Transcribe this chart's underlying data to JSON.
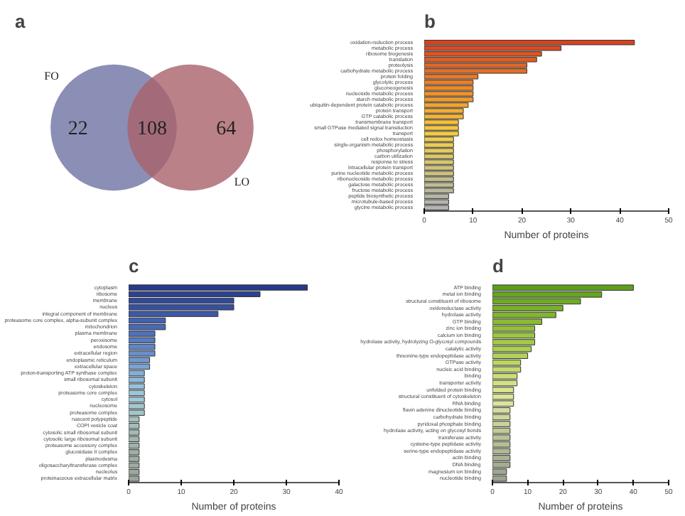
{
  "chart_data": [
    {
      "type": "other",
      "title": "a",
      "annotations": [
        "FO",
        "LO",
        "22",
        "108",
        "64"
      ]
    },
    {
      "type": "bar",
      "title": "b",
      "orientation": "horizontal",
      "xlabel": "Number of proteins",
      "xlim": [
        0,
        50
      ],
      "xticks": [
        0,
        10,
        20,
        30,
        40,
        50
      ],
      "grid": false,
      "categories": [
        "oxidation-reduction process",
        "metabolic process",
        "ribosome biogenesis",
        "translation",
        "proteolysis",
        "carbohydrate metabolic process",
        "protein folding",
        "glycolytic process",
        "gluconeogenesis",
        "nucleoside metabolic process",
        "starch metabolic process",
        "ubiquitin-dependent protein catabolic process",
        "protein transport",
        "GTP catabolic process",
        "transmembrane transport",
        "small GTPase mediated signal transduction",
        "transport",
        "cell redox homeostasis",
        "single-organism metabolic process",
        "phosphorylation",
        "carbon utilization",
        "response to stress",
        "intracellular protein transport",
        "purine nucleotide metabolic process",
        "ribonucleoside metabolic process",
        "galactose metabolic process",
        "fructose metabolic process",
        "peptide biosynthetic process",
        "microtubule-based process",
        "glycine metabolic process"
      ],
      "values": [
        43,
        28,
        24,
        23,
        21,
        21,
        11,
        10,
        10,
        10,
        10,
        9,
        8,
        8,
        7,
        7,
        7,
        6,
        6,
        6,
        6,
        6,
        6,
        6,
        6,
        6,
        6,
        5,
        5,
        5
      ],
      "colors": [
        "#d8431f",
        "#dc4b20",
        "#df5421",
        "#e25c22",
        "#e46523",
        "#e76e24",
        "#ea7725",
        "#ec8026",
        "#ef8927",
        "#f09229",
        "#f29b2b",
        "#f3a42e",
        "#f4ad31",
        "#f5b634",
        "#f5be38",
        "#f5c63d",
        "#f3cb44",
        "#efcd4c",
        "#eacd55",
        "#e4cc5e",
        "#ddc967",
        "#d6c670",
        "#d0c379",
        "#cac081",
        "#c4bd8a",
        "#bfbb93",
        "#bab99c",
        "#b7b7a5",
        "#b5b5ad",
        "#b4b4b4"
      ]
    },
    {
      "type": "bar",
      "title": "c",
      "orientation": "horizontal",
      "xlabel": "Number of proteins",
      "xlim": [
        0,
        40
      ],
      "xticks": [
        0,
        10,
        20,
        30,
        40
      ],
      "grid": false,
      "categories": [
        "cytoplasm",
        "ribosome",
        "membrane",
        "nucleus",
        "integral component of membrane",
        "proteasome core complex, alpha-subunit complex",
        "mitochondrion",
        "plasma membrane",
        "peroxisome",
        "endosome",
        "extracellular region",
        "endoplasmic reticulum",
        "extracellular space",
        "proton-transporting ATP synthase complex",
        "small ribosomal subunit",
        "cytoskeleton",
        "proteasome core complex",
        "cytosol",
        "nucleosome",
        "proteasome complex",
        "nascent polypeptide",
        "COPI vesicle coat",
        "cytosolic small ribosomal subunit",
        "cytosolic large ribosomal subunit",
        "proteasome accessory complex",
        "glucosidase II complex",
        "plasmodesma",
        "oligosaccharyltransferase complex",
        "nucleolus",
        "proteinaceous extracellular matrix"
      ],
      "values": [
        34,
        25,
        20,
        20,
        17,
        7,
        7,
        5,
        5,
        5,
        5,
        4,
        4,
        3,
        3,
        3,
        3,
        3,
        3,
        3,
        2,
        2,
        2,
        2,
        2,
        2,
        2,
        2,
        2,
        2
      ],
      "colors": [
        "#263a8a",
        "#2b4292",
        "#30499a",
        "#3651a2",
        "#3c59aa",
        "#4261b1",
        "#4869b7",
        "#4f72bd",
        "#567bc2",
        "#5e85c7",
        "#678fcc",
        "#7099d1",
        "#7aa3d5",
        "#84aed9",
        "#8eb8dc",
        "#96c1dd",
        "#9cc6db",
        "#a0c8d6",
        "#a2c8d0",
        "#a3c6c9",
        "#a3c3c2",
        "#a2bfbb",
        "#a1bbb5",
        "#a0b7af",
        "#9fb3aa",
        "#9eafa6",
        "#9dada2",
        "#9caa9f",
        "#9ba89d",
        "#9aa69b"
      ]
    },
    {
      "type": "bar",
      "title": "d",
      "orientation": "horizontal",
      "xlabel": "Number of proteins",
      "xlim": [
        0,
        50
      ],
      "xticks": [
        0,
        10,
        20,
        30,
        40,
        50
      ],
      "grid": false,
      "categories": [
        "ATP binding",
        "metal ion binding",
        "structural constituent of ribosome",
        "oxidoreductase activity",
        "hydrolase activity",
        "GTP binding",
        "zinc ion binding",
        "calcium ion binding",
        "hydrolase activity, hydrolyzing O-glycosyl compounds",
        "catalytic activity",
        "threonine-type endopeptidase activity",
        "GTPase activity",
        "nucleic acid binding",
        "binding",
        "transporter activity",
        "unfolded protein binding",
        "structural constituent of cytoskeleton",
        "RNA binding",
        "flavin adenine dinucleotide binding",
        "carbohydrate binding",
        "pyridoxal phosphate binding",
        "hydrolase activity, acting on glycosyl bonds",
        "transferase activity",
        "cysteine-type peptidase activity",
        "serine-type endopeptidase activity",
        "actin binding",
        "DNA binding",
        "magnesium ion binding",
        "nucleotide binding"
      ],
      "values": [
        40,
        31,
        25,
        20,
        18,
        14,
        12,
        12,
        12,
        11,
        10,
        8,
        8,
        7,
        7,
        6,
        6,
        6,
        5,
        5,
        5,
        5,
        5,
        5,
        5,
        5,
        5,
        4,
        4
      ],
      "colors": [
        "#5e9f1c",
        "#66a51f",
        "#6fab23",
        "#78b127",
        "#80b72b",
        "#89bc30",
        "#92c136",
        "#9bc63d",
        "#a3cb45",
        "#abcf4e",
        "#b3d358",
        "#bbd762",
        "#c3db6d",
        "#cbdf78",
        "#d2e283",
        "#d8e58e",
        "#dde697",
        "#dce49c",
        "#d6de9d",
        "#cfd79b",
        "#c8d199",
        "#c1ca97",
        "#bac495",
        "#b4be94",
        "#aeb893",
        "#a9b292",
        "#a4ad92",
        "#a0a892",
        "#9ca492"
      ]
    }
  ]
}
